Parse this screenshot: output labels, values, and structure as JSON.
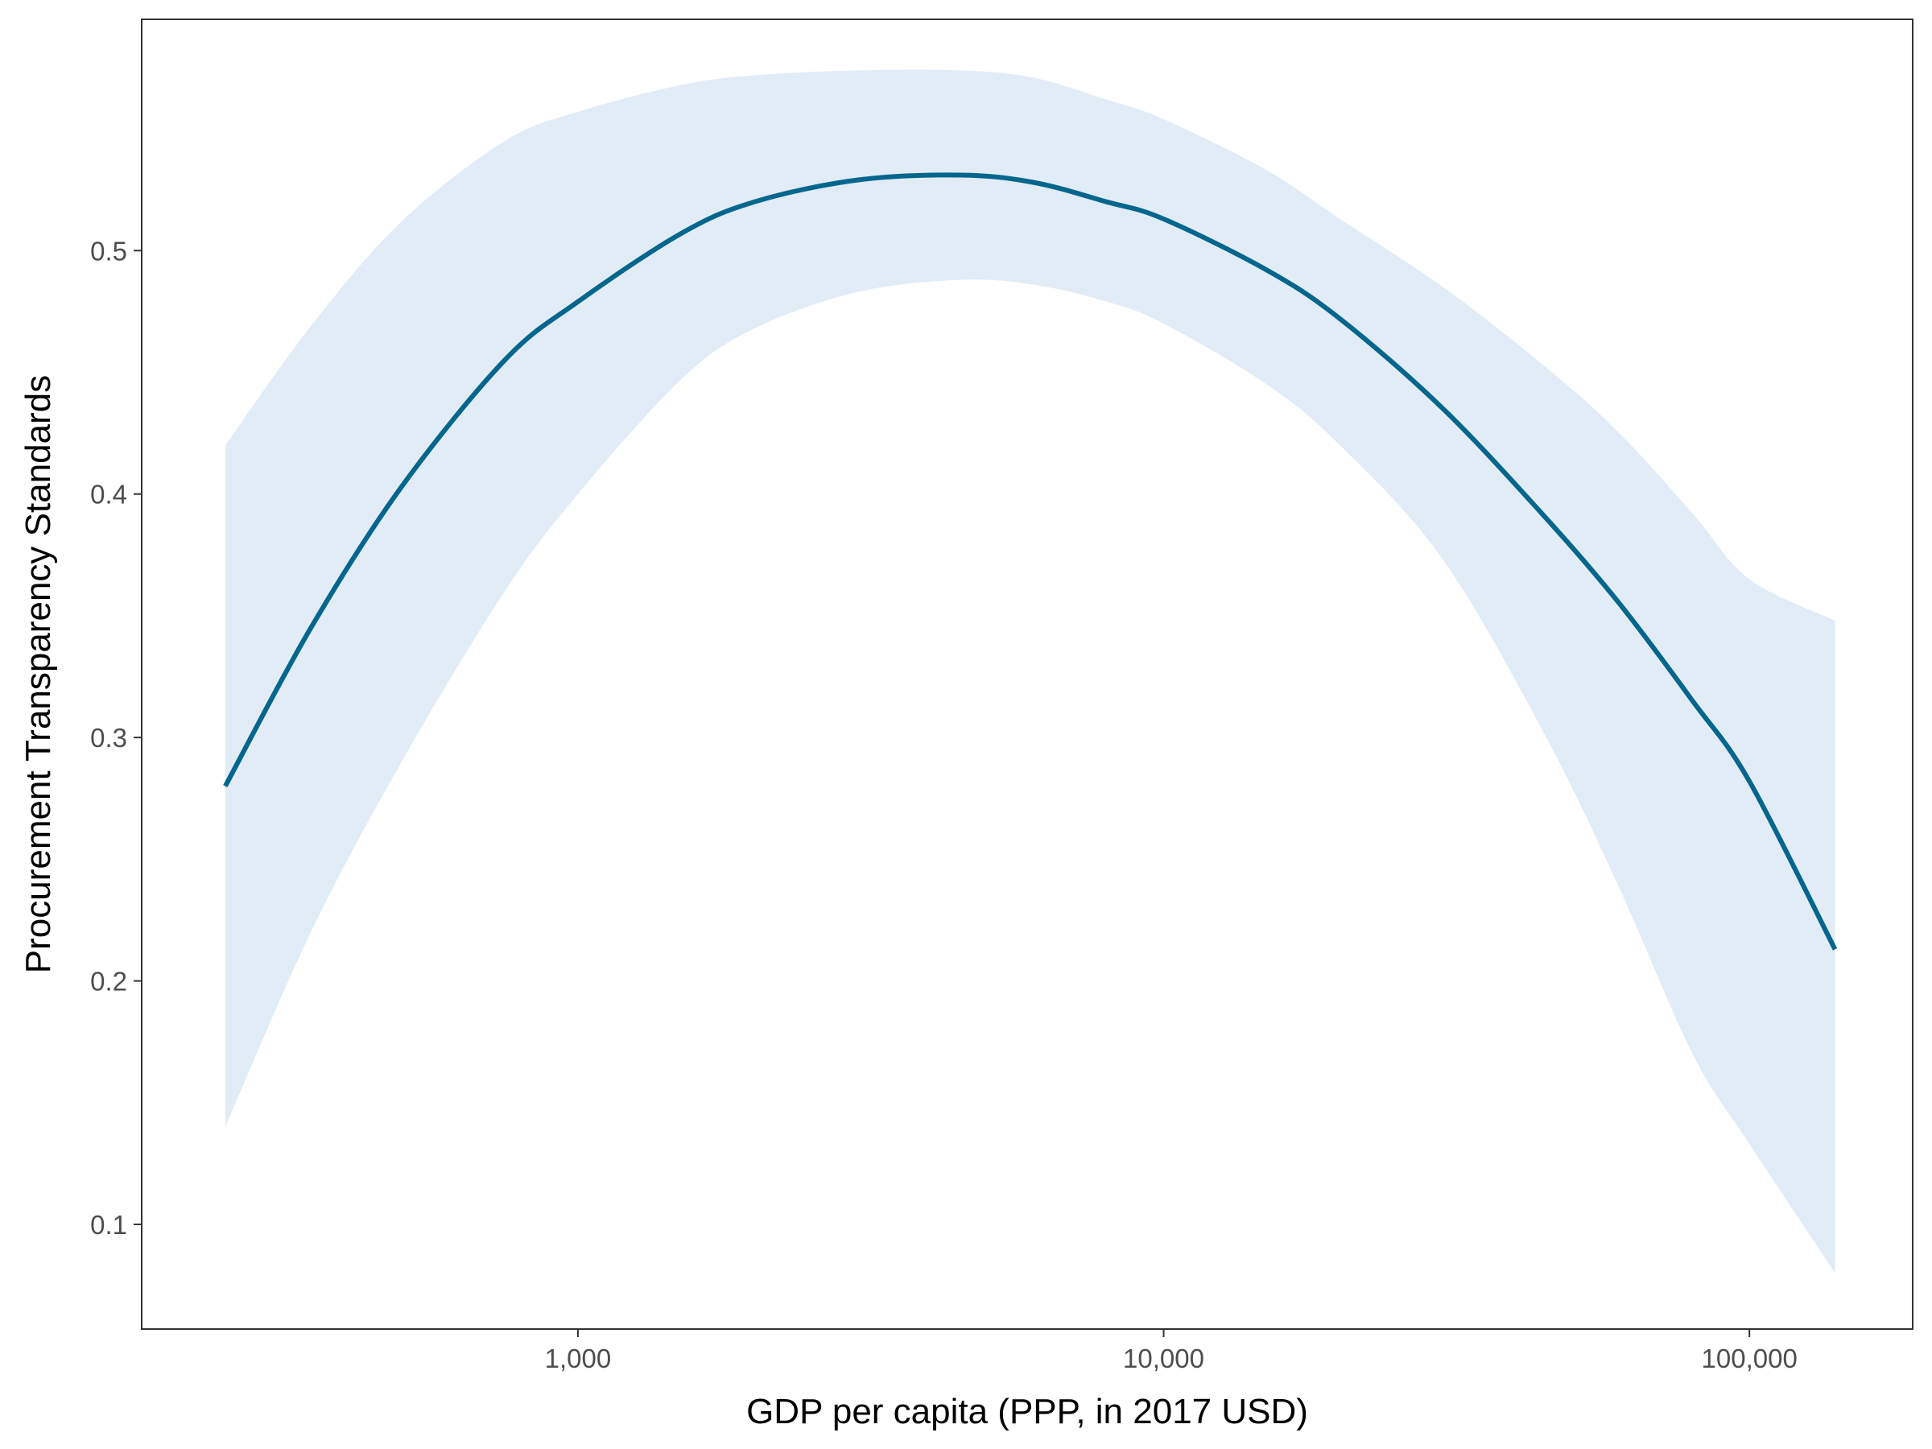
{
  "chart_data": {
    "type": "line",
    "title": "",
    "xlabel": "GDP per capita (PPP, in 2017 USD)",
    "ylabel": "Procurement Transparency Standards",
    "x_scale": "log10",
    "xlim": [
      180,
      190000
    ],
    "ylim": [
      0.057,
      0.595
    ],
    "x_ticks": [
      1000,
      10000,
      100000
    ],
    "x_tick_labels": [
      "1,000",
      "10,000",
      "100,000"
    ],
    "y_ticks": [
      0.1,
      0.2,
      0.3,
      0.4,
      0.5
    ],
    "y_tick_labels": [
      "0.1",
      "0.2",
      "0.3",
      "0.4",
      "0.5"
    ],
    "grid": false,
    "line_color": "#05668d",
    "band_color": "#e2ecf7",
    "series": [
      {
        "x": [
          250,
          350,
          500,
          750,
          1000,
          1500,
          2000,
          3000,
          4500,
          6000,
          8000,
          10000,
          15000,
          20000,
          30000,
          45000,
          60000,
          80000,
          100000,
          140000
        ],
        "y": [
          0.28,
          0.345,
          0.403,
          0.455,
          0.479,
          0.507,
          0.52,
          0.529,
          0.531,
          0.528,
          0.52,
          0.513,
          0.492,
          0.472,
          0.435,
          0.39,
          0.355,
          0.315,
          0.282,
          0.213
        ],
        "lower": [
          0.14,
          0.22,
          0.29,
          0.36,
          0.4,
          0.447,
          0.468,
          0.483,
          0.488,
          0.486,
          0.479,
          0.47,
          0.445,
          0.42,
          0.373,
          0.3,
          0.238,
          0.17,
          0.133,
          0.08
        ],
        "upper": [
          0.42,
          0.469,
          0.512,
          0.545,
          0.557,
          0.568,
          0.572,
          0.574,
          0.574,
          0.571,
          0.562,
          0.554,
          0.533,
          0.513,
          0.485,
          0.452,
          0.425,
          0.392,
          0.365,
          0.348
        ]
      }
    ]
  }
}
